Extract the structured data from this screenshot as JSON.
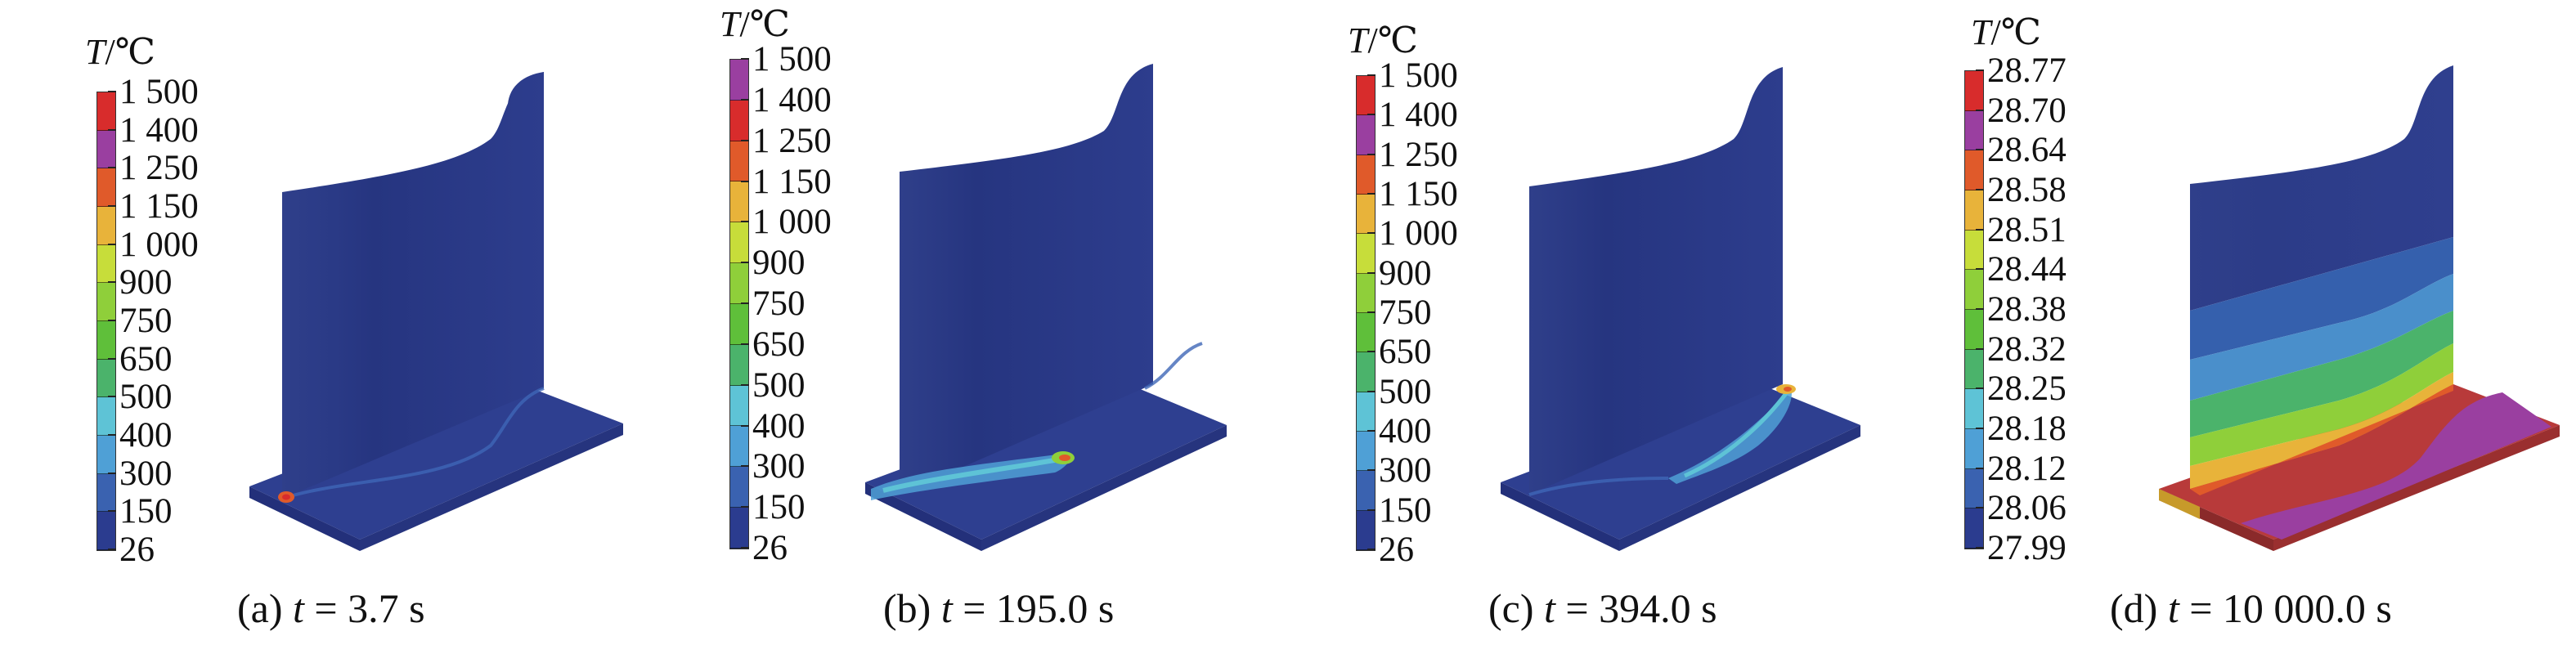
{
  "legend_title": {
    "symbol": "T",
    "unit": "/℃"
  },
  "colors": {
    "c26": "#2b3c8f",
    "c150": "#3a62b0",
    "c300": "#4fa0d6",
    "c400": "#5ec3d6",
    "c500": "#4bb36b",
    "c650": "#5fbf3a",
    "c750": "#8fcf3a",
    "c900": "#c7dd3a",
    "c1000": "#e8b33a",
    "c1150": "#e05a2a",
    "c1250": "#c63030",
    "c1400": "#9a3fa0",
    "c1500": "#d82c2c"
  },
  "panels": [
    {
      "caption_prefix": "(a) ",
      "caption_var": "t",
      "caption_value": " = 3.7 s",
      "ticks": [
        "1 500",
        "1 400",
        "1 250",
        "1 150",
        "1 000",
        "900",
        "750",
        "650",
        "500",
        "400",
        "300",
        "150",
        "26"
      ],
      "bar_colors": [
        "#d82c2c",
        "#9a3fa0",
        "#e05a2a",
        "#e8b33a",
        "#c7dd3a",
        "#8fcf3a",
        "#5fbf3a",
        "#4bb36b",
        "#5ec3d6",
        "#4fa0d6",
        "#3a62b0",
        "#2b3c8f"
      ]
    },
    {
      "caption_prefix": "(b) ",
      "caption_var": "t",
      "caption_value": " = 195.0 s",
      "ticks": [
        "1 500",
        "1 400",
        "1 250",
        "1 150",
        "1 000",
        "900",
        "750",
        "650",
        "500",
        "400",
        "300",
        "150",
        "26"
      ],
      "bar_colors": [
        "#9a3fa0",
        "#d82c2c",
        "#e05a2a",
        "#e8b33a",
        "#c7dd3a",
        "#8fcf3a",
        "#5fbf3a",
        "#4bb36b",
        "#5ec3d6",
        "#4fa0d6",
        "#3a62b0",
        "#2b3c8f"
      ]
    },
    {
      "caption_prefix": "(c) ",
      "caption_var": "t",
      "caption_value": " = 394.0 s",
      "ticks": [
        "1 500",
        "1 400",
        "1 250",
        "1 150",
        "1 000",
        "900",
        "750",
        "650",
        "500",
        "400",
        "300",
        "150",
        "26"
      ],
      "bar_colors": [
        "#d82c2c",
        "#9a3fa0",
        "#e05a2a",
        "#e8b33a",
        "#c7dd3a",
        "#8fcf3a",
        "#5fbf3a",
        "#4bb36b",
        "#5ec3d6",
        "#4fa0d6",
        "#3a62b0",
        "#2b3c8f"
      ]
    },
    {
      "caption_prefix": "(d) ",
      "caption_var": "t",
      "caption_value": " = 10 000.0 s",
      "ticks": [
        "28.77",
        "28.70",
        "28.64",
        "28.58",
        "28.51",
        "28.44",
        "28.38",
        "28.32",
        "28.25",
        "28.18",
        "28.12",
        "28.06",
        "27.99"
      ],
      "bar_colors": [
        "#d82c2c",
        "#9a3fa0",
        "#e05a2a",
        "#e8b33a",
        "#c7dd3a",
        "#8fcf3a",
        "#5fbf3a",
        "#4bb36b",
        "#5ec3d6",
        "#4fa0d6",
        "#3a62b0",
        "#2b3c8f"
      ]
    }
  ]
}
